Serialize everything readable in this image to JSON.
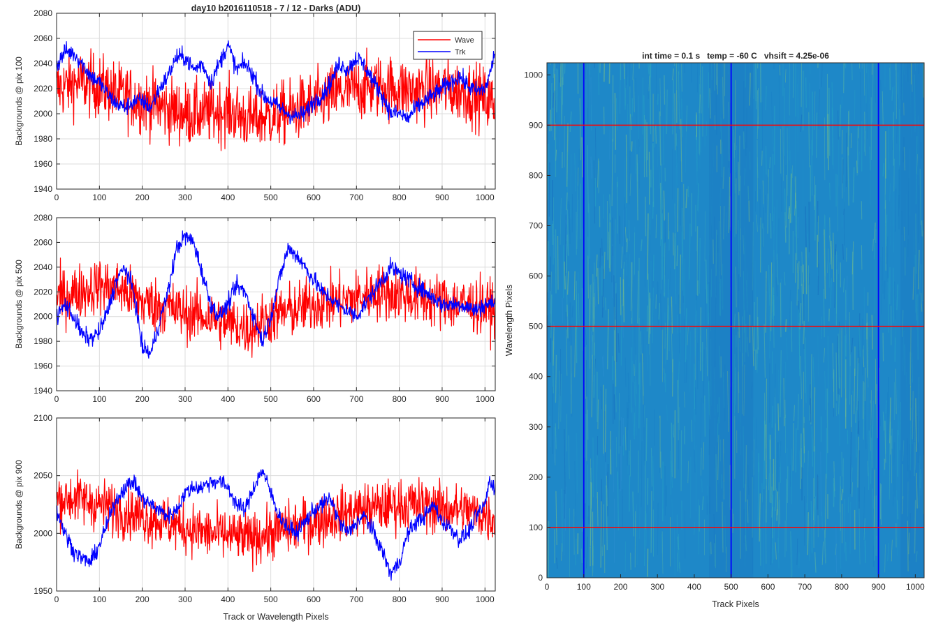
{
  "figure": {
    "title": "day10 b2016110518 - 7 / 12 - Darks (ADU)",
    "shared_xlabel": "Track or Wavelength Pixels"
  },
  "colors": {
    "wave": "#ff0000",
    "trk": "#0000ff",
    "axis": "#262626",
    "grid": "#dcdcdc",
    "image_base": "#1e88c8",
    "image_hot": "#8ec85c"
  },
  "chart_data": [
    {
      "type": "line",
      "id": "pix100",
      "ylabel": "Backgrounds @ pix 100",
      "xlabel": "",
      "xlim": [
        0,
        1024
      ],
      "ylim": [
        1940,
        2080
      ],
      "xticks": [
        0,
        100,
        200,
        300,
        400,
        500,
        600,
        700,
        800,
        900,
        1000
      ],
      "yticks": [
        1940,
        1960,
        1980,
        2000,
        2020,
        2040,
        2060,
        2080
      ],
      "grid": true,
      "legend": {
        "placement": "top-right",
        "entries": [
          "Wave",
          "Trk"
        ]
      },
      "series": [
        {
          "name": "Wave",
          "color": "#ff0000",
          "x": [
            0,
            50,
            100,
            150,
            200,
            250,
            300,
            350,
            400,
            450,
            500,
            550,
            600,
            650,
            700,
            750,
            800,
            850,
            900,
            950,
            1000,
            1024
          ],
          "values": [
            2020,
            2025,
            2022,
            2015,
            2010,
            2005,
            2000,
            2000,
            2003,
            1995,
            1998,
            2002,
            2008,
            2015,
            2020,
            2022,
            2020,
            2018,
            2020,
            2018,
            2012,
            2008
          ]
        },
        {
          "name": "Trk",
          "color": "#0000ff",
          "x": [
            0,
            20,
            40,
            60,
            80,
            100,
            120,
            140,
            160,
            180,
            200,
            220,
            240,
            260,
            280,
            300,
            320,
            340,
            360,
            380,
            400,
            420,
            440,
            460,
            480,
            500,
            520,
            540,
            560,
            580,
            600,
            620,
            640,
            660,
            680,
            700,
            720,
            740,
            760,
            780,
            800,
            820,
            840,
            860,
            880,
            900,
            920,
            940,
            960,
            980,
            1000,
            1010,
            1024
          ],
          "values": [
            2038,
            2050,
            2048,
            2040,
            2030,
            2025,
            2015,
            2008,
            2005,
            2010,
            2010,
            2005,
            2020,
            2030,
            2045,
            2045,
            2035,
            2040,
            2025,
            2040,
            2055,
            2035,
            2040,
            2030,
            2015,
            2010,
            2005,
            2000,
            1998,
            2000,
            2010,
            2015,
            2025,
            2040,
            2035,
            2045,
            2038,
            2025,
            2015,
            2000,
            2000,
            1996,
            2005,
            2010,
            2015,
            2020,
            2025,
            2030,
            2022,
            2018,
            2020,
            2030,
            2050
          ]
        }
      ]
    },
    {
      "type": "line",
      "id": "pix500",
      "ylabel": "Backgrounds @ pix 500",
      "xlabel": "",
      "xlim": [
        0,
        1024
      ],
      "ylim": [
        1940,
        2080
      ],
      "xticks": [
        0,
        100,
        200,
        300,
        400,
        500,
        600,
        700,
        800,
        900,
        1000
      ],
      "yticks": [
        1940,
        1960,
        1980,
        2000,
        2020,
        2040,
        2060,
        2080
      ],
      "grid": true,
      "series": [
        {
          "name": "Wave",
          "color": "#ff0000",
          "x": [
            0,
            50,
            100,
            150,
            200,
            250,
            300,
            350,
            400,
            450,
            500,
            550,
            600,
            650,
            700,
            750,
            800,
            850,
            900,
            950,
            1000,
            1024
          ],
          "values": [
            2015,
            2020,
            2025,
            2022,
            2012,
            2008,
            2003,
            2000,
            1995,
            1990,
            2000,
            2005,
            2010,
            2012,
            2015,
            2020,
            2018,
            2015,
            2012,
            2010,
            2008,
            2005
          ]
        },
        {
          "name": "Trk",
          "color": "#0000ff",
          "x": [
            0,
            20,
            40,
            60,
            80,
            100,
            120,
            140,
            160,
            180,
            200,
            220,
            240,
            260,
            280,
            300,
            320,
            340,
            360,
            380,
            400,
            420,
            440,
            460,
            480,
            500,
            520,
            540,
            560,
            580,
            600,
            620,
            640,
            660,
            680,
            700,
            720,
            740,
            760,
            780,
            800,
            820,
            840,
            860,
            880,
            900,
            920,
            940,
            960,
            980,
            1000,
            1010,
            1024
          ],
          "values": [
            2000,
            2010,
            2000,
            1985,
            1982,
            1988,
            2005,
            2030,
            2040,
            2020,
            1975,
            1970,
            1995,
            2020,
            2055,
            2065,
            2060,
            2035,
            2010,
            2000,
            2010,
            2025,
            2020,
            2000,
            1980,
            2000,
            2030,
            2055,
            2050,
            2040,
            2030,
            2020,
            2015,
            2008,
            2005,
            2000,
            2010,
            2020,
            2030,
            2040,
            2035,
            2030,
            2025,
            2020,
            2015,
            2010,
            2010,
            2010,
            2008,
            2005,
            2010,
            2010,
            2012
          ]
        }
      ]
    },
    {
      "type": "line",
      "id": "pix900",
      "ylabel": "Backgrounds @ pix 900",
      "xlabel": "Track or Wavelength Pixels",
      "xlim": [
        0,
        1024
      ],
      "ylim": [
        1950,
        2100
      ],
      "xticks": [
        0,
        100,
        200,
        300,
        400,
        500,
        600,
        700,
        800,
        900,
        1000
      ],
      "yticks": [
        1950,
        2000,
        2050,
        2100
      ],
      "grid": true,
      "series": [
        {
          "name": "Wave",
          "color": "#ff0000",
          "x": [
            0,
            50,
            100,
            150,
            200,
            250,
            300,
            350,
            400,
            450,
            500,
            550,
            600,
            650,
            700,
            750,
            800,
            850,
            900,
            950,
            1000,
            1024
          ],
          "values": [
            2030,
            2030,
            2025,
            2020,
            2015,
            2010,
            2005,
            2000,
            1998,
            1995,
            2000,
            2005,
            2010,
            2015,
            2020,
            2022,
            2025,
            2025,
            2022,
            2020,
            2015,
            2012
          ]
        },
        {
          "name": "Trk",
          "color": "#0000ff",
          "x": [
            0,
            20,
            40,
            60,
            80,
            100,
            120,
            140,
            160,
            180,
            200,
            220,
            240,
            260,
            280,
            300,
            320,
            340,
            360,
            380,
            400,
            420,
            440,
            460,
            480,
            500,
            520,
            540,
            560,
            580,
            600,
            620,
            640,
            660,
            680,
            700,
            720,
            740,
            760,
            780,
            800,
            820,
            840,
            860,
            880,
            900,
            920,
            940,
            960,
            980,
            1000,
            1010,
            1024
          ],
          "values": [
            2020,
            2000,
            1985,
            1978,
            1975,
            1990,
            2010,
            2030,
            2040,
            2045,
            2030,
            2025,
            2020,
            2015,
            2020,
            2035,
            2040,
            2040,
            2045,
            2045,
            2040,
            2025,
            2020,
            2040,
            2055,
            2035,
            2015,
            2005,
            2000,
            2010,
            2020,
            2025,
            2030,
            2010,
            2000,
            2010,
            2015,
            2000,
            1985,
            1965,
            1975,
            2000,
            2010,
            2015,
            2025,
            2010,
            2005,
            1995,
            2000,
            2015,
            2025,
            2045,
            2040
          ]
        }
      ]
    },
    {
      "type": "heatmap",
      "id": "dark-frame",
      "title": "int time = 0.1 s   temp = -60 C   vhsift = 4.25e-06",
      "xlabel": "Track Pixels",
      "ylabel": "Wavelength Pixels",
      "xlim": [
        0,
        1024
      ],
      "ylim": [
        0,
        1024
      ],
      "xticks": [
        0,
        100,
        200,
        300,
        400,
        500,
        600,
        700,
        800,
        900,
        1000
      ],
      "yticks": [
        0,
        100,
        200,
        300,
        400,
        500,
        600,
        700,
        800,
        900,
        1000
      ],
      "markers": {
        "vertical_lines_x": [
          100,
          500,
          900
        ],
        "vertical_line_color": "#0000ff",
        "horizontal_lines_y": [
          100,
          500,
          900
        ],
        "horizontal_line_color": "#ff0000"
      }
    }
  ]
}
